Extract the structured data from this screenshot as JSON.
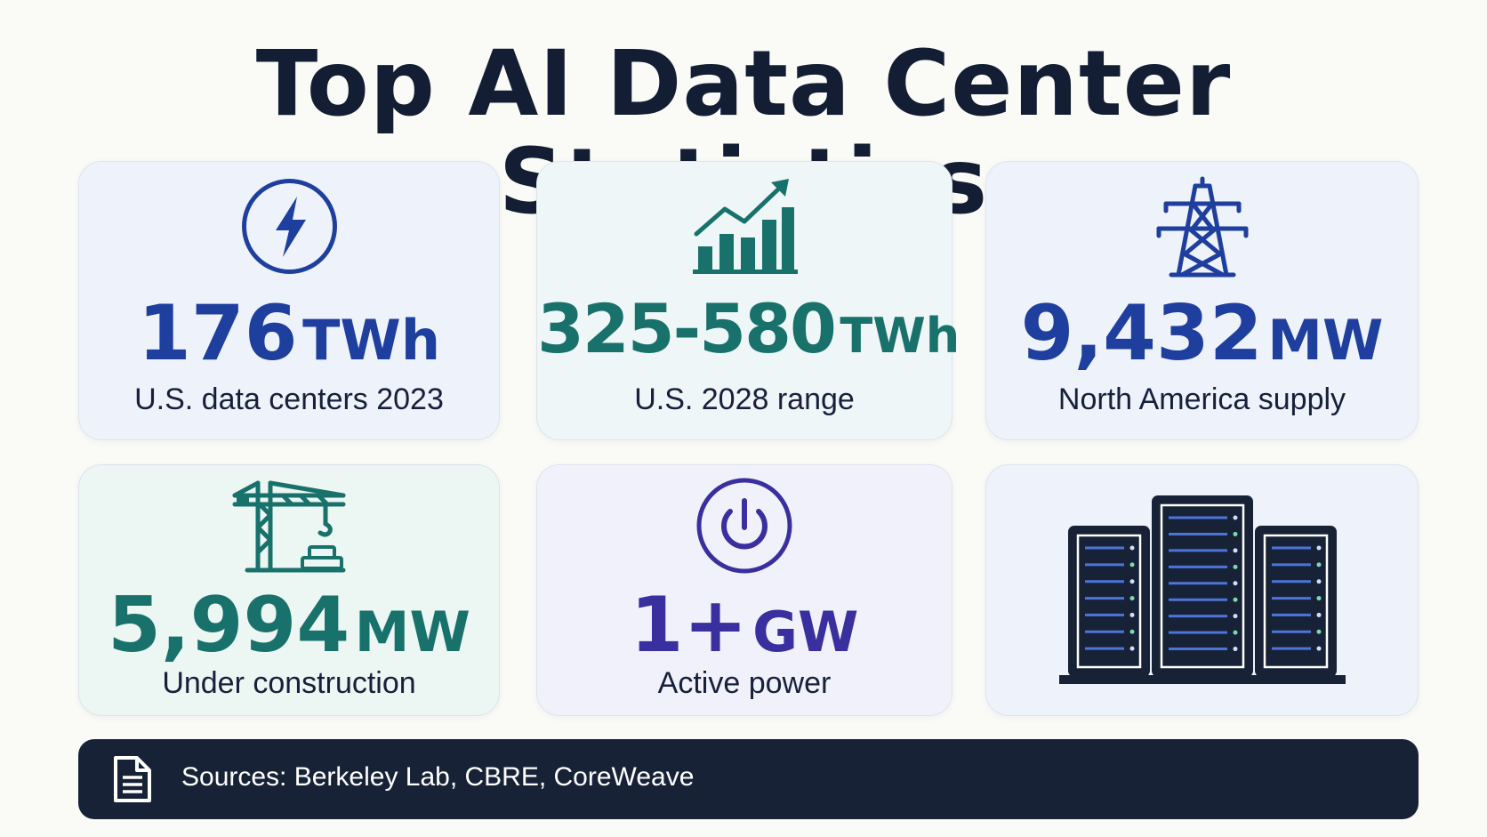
{
  "title": "Top AI Data Center Statistics",
  "cards": [
    {
      "value": "176",
      "unit": "TWh",
      "label": "U.S. data centers 2023",
      "icon": "lightning-bolt-icon",
      "color": "#1e3f9e"
    },
    {
      "value": "325-580",
      "unit": "TWh",
      "label": "U.S. 2028 range",
      "icon": "growth-chart-icon",
      "color": "#18716b"
    },
    {
      "value": "9,432",
      "unit": "MW",
      "label": "North America supply",
      "icon": "transmission-tower-icon",
      "color": "#1e3f9e"
    },
    {
      "value": "5,994",
      "unit": "MW",
      "label": "Under construction",
      "icon": "construction-crane-icon",
      "color": "#18716b"
    },
    {
      "value": "1+",
      "unit": "GW",
      "label": "Active power",
      "icon": "power-button-icon",
      "color": "#3a2f9e"
    },
    {
      "icon": "server-racks-icon",
      "color": "#182237"
    }
  ],
  "footer": {
    "icon": "document-icon",
    "text": "Sources: Berkeley Lab, CBRE, CoreWeave"
  }
}
